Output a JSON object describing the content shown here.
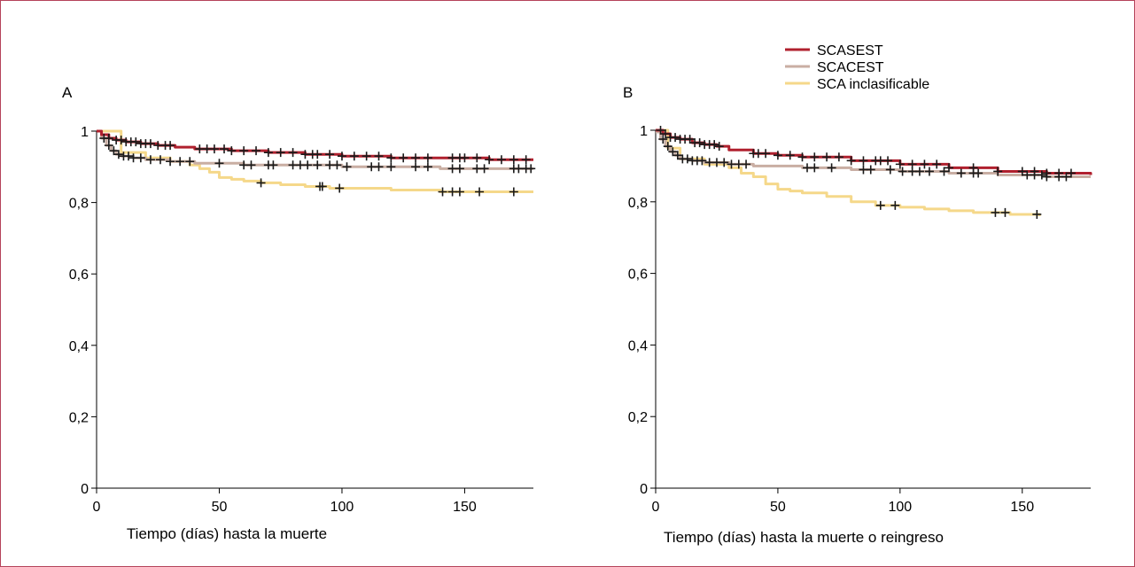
{
  "colors": {
    "SCASEST": "#b0202e",
    "SCACEST": "#c9aea3",
    "SCA inclasificable": "#f5d88a",
    "censor": "#1a1a1a",
    "frame": "#b5435a"
  },
  "legend": {
    "placement": "top-right",
    "entries": [
      "SCASEST",
      "SCACEST",
      "SCA inclasificable"
    ]
  },
  "chart_data": [
    {
      "type": "line",
      "subtype": "kaplan-meier",
      "panel": "A",
      "title": "",
      "xlabel": "Tiempo (días) hasta la muerte",
      "ylabel": "",
      "xlim": [
        0,
        178
      ],
      "ylim": [
        0,
        1
      ],
      "xticks": [
        0,
        50,
        100,
        150
      ],
      "xtick_labels": [
        "0",
        "50",
        "100",
        "150"
      ],
      "yticks": [
        0,
        0.2,
        0.4,
        0.6,
        0.8,
        1
      ],
      "ytick_labels": [
        "0",
        "0,2",
        "0,4",
        "0,6",
        "0,8",
        "1"
      ],
      "grid": false,
      "series": [
        {
          "name": "SCASEST",
          "x": [
            0,
            2,
            5,
            8,
            12,
            18,
            25,
            32,
            40,
            55,
            70,
            85,
            100,
            120,
            140,
            160,
            178
          ],
          "values": [
            1,
            0.99,
            0.98,
            0.975,
            0.97,
            0.965,
            0.96,
            0.955,
            0.95,
            0.945,
            0.94,
            0.935,
            0.93,
            0.925,
            0.925,
            0.92,
            0.92
          ],
          "censor_x": [
            5,
            8,
            10,
            12,
            14,
            16,
            18,
            20,
            22,
            25,
            28,
            30,
            42,
            45,
            48,
            52,
            55,
            60,
            65,
            70,
            75,
            80,
            85,
            88,
            90,
            95,
            100,
            105,
            110,
            115,
            120,
            125,
            130,
            135,
            145,
            148,
            150,
            155,
            160,
            165,
            170,
            175
          ]
        },
        {
          "name": "SCACEST",
          "x": [
            0,
            2,
            4,
            6,
            8,
            10,
            15,
            20,
            30,
            40,
            60,
            80,
            100,
            120,
            140,
            160,
            178
          ],
          "values": [
            1,
            0.98,
            0.96,
            0.945,
            0.935,
            0.93,
            0.925,
            0.92,
            0.915,
            0.91,
            0.905,
            0.905,
            0.9,
            0.9,
            0.895,
            0.895,
            0.895
          ],
          "censor_x": [
            3,
            5,
            7,
            9,
            11,
            13,
            15,
            18,
            22,
            26,
            30,
            34,
            38,
            50,
            60,
            63,
            70,
            72,
            80,
            83,
            86,
            90,
            95,
            98,
            102,
            112,
            115,
            120,
            130,
            135,
            145,
            148,
            155,
            158,
            170,
            172,
            175,
            177
          ]
        },
        {
          "name": "SCA inclasificable",
          "x": [
            0,
            10,
            20,
            30,
            38,
            42,
            46,
            50,
            55,
            60,
            67,
            75,
            85,
            95,
            105,
            120,
            140,
            155,
            178
          ],
          "values": [
            1,
            0.94,
            0.925,
            0.915,
            0.905,
            0.895,
            0.885,
            0.87,
            0.865,
            0.86,
            0.855,
            0.85,
            0.845,
            0.84,
            0.84,
            0.835,
            0.83,
            0.83,
            0.83
          ],
          "censor_x": [
            67,
            91,
            92,
            99,
            141,
            145,
            148,
            156,
            170
          ]
        }
      ]
    },
    {
      "type": "line",
      "subtype": "kaplan-meier",
      "panel": "B",
      "title": "",
      "xlabel": "Tiempo (días) hasta la muerte o reingreso",
      "ylabel": "",
      "xlim": [
        0,
        178
      ],
      "ylim": [
        0,
        1
      ],
      "xticks": [
        0,
        50,
        100,
        150
      ],
      "xtick_labels": [
        "0",
        "50",
        "100",
        "150"
      ],
      "yticks": [
        0,
        0.2,
        0.4,
        0.6,
        0.8,
        1
      ],
      "ytick_labels": [
        "0",
        "0,2",
        "0,4",
        "0,6",
        "0,8",
        "1"
      ],
      "grid": false,
      "series": [
        {
          "name": "SCASEST",
          "x": [
            0,
            3,
            6,
            10,
            15,
            20,
            25,
            30,
            40,
            50,
            60,
            80,
            100,
            120,
            140,
            160,
            178
          ],
          "values": [
            1,
            0.99,
            0.98,
            0.975,
            0.965,
            0.96,
            0.955,
            0.945,
            0.935,
            0.93,
            0.925,
            0.915,
            0.905,
            0.895,
            0.885,
            0.88,
            0.875
          ],
          "censor_x": [
            2,
            4,
            6,
            8,
            10,
            12,
            14,
            16,
            18,
            20,
            22,
            24,
            26,
            40,
            42,
            45,
            50,
            55,
            60,
            65,
            70,
            75,
            80,
            85,
            90,
            92,
            95,
            100,
            105,
            110,
            115,
            120,
            130,
            140,
            150,
            155,
            160,
            165,
            170
          ]
        },
        {
          "name": "SCACEST",
          "x": [
            0,
            2,
            4,
            6,
            8,
            10,
            15,
            20,
            30,
            40,
            60,
            80,
            100,
            120,
            140,
            160,
            178
          ],
          "values": [
            0.995,
            0.975,
            0.955,
            0.94,
            0.93,
            0.92,
            0.915,
            0.91,
            0.905,
            0.9,
            0.895,
            0.89,
            0.885,
            0.88,
            0.875,
            0.87,
            0.87
          ],
          "censor_x": [
            3,
            5,
            7,
            9,
            11,
            13,
            15,
            17,
            19,
            22,
            25,
            28,
            31,
            34,
            37,
            62,
            65,
            72,
            85,
            88,
            96,
            101,
            105,
            108,
            112,
            118,
            125,
            130,
            132,
            152,
            155,
            158,
            160,
            165,
            168
          ]
        },
        {
          "name": "SCA inclasificable",
          "x": [
            0,
            5,
            10,
            20,
            30,
            35,
            40,
            45,
            50,
            55,
            60,
            70,
            80,
            90,
            100,
            110,
            120,
            130,
            145,
            157
          ],
          "values": [
            1,
            0.95,
            0.92,
            0.905,
            0.895,
            0.88,
            0.87,
            0.85,
            0.835,
            0.83,
            0.825,
            0.815,
            0.8,
            0.79,
            0.785,
            0.78,
            0.775,
            0.77,
            0.765,
            0.76
          ],
          "censor_x": [
            92,
            98,
            139,
            143,
            156
          ]
        }
      ]
    }
  ]
}
